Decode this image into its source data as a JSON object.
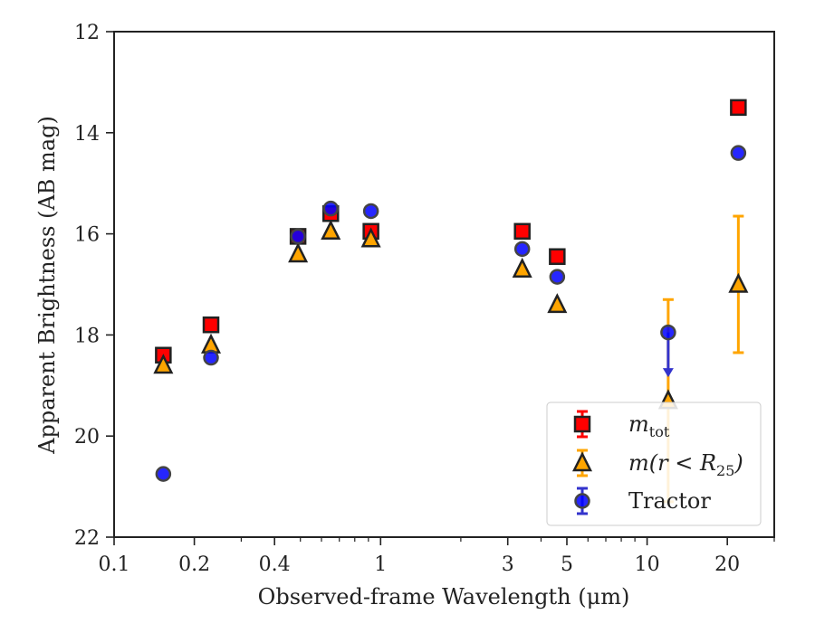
{
  "chart_data": {
    "type": "scatter",
    "xlabel": "Observed-frame Wavelength (μm)",
    "ylabel": "Apparent Brightness (AB mag)",
    "xscale": "log",
    "xlim": [
      0.1,
      30
    ],
    "ylim": [
      22,
      12
    ],
    "y_inverted": true,
    "x_ticks": [
      0.1,
      0.2,
      0.4,
      1,
      3,
      5,
      10,
      20
    ],
    "x_tick_labels": [
      "0.1",
      "0.2",
      "0.4",
      "1",
      "3",
      "5",
      "10",
      "20"
    ],
    "y_ticks": [
      12,
      14,
      16,
      18,
      20,
      22
    ],
    "y_tick_labels": [
      "12",
      "14",
      "16",
      "18",
      "20",
      "22"
    ],
    "grid": false,
    "legend_placement": "lower-right",
    "series": [
      {
        "name": "m_tot",
        "legend_main": "m",
        "legend_sub": "tot",
        "marker": "square",
        "color": "#ff0000",
        "edge_color": "#222222",
        "points": [
          {
            "x": 0.153,
            "y": 18.4
          },
          {
            "x": 0.231,
            "y": 17.8
          },
          {
            "x": 0.49,
            "y": 16.05
          },
          {
            "x": 0.65,
            "y": 15.6
          },
          {
            "x": 0.92,
            "y": 15.95
          },
          {
            "x": 3.4,
            "y": 15.95
          },
          {
            "x": 4.6,
            "y": 16.45
          },
          {
            "x": 22.0,
            "y": 13.5
          }
        ]
      },
      {
        "name": "m(r < R25)",
        "legend_main": "m(r < R",
        "legend_sub": "25",
        "legend_tail": ")",
        "marker": "triangle",
        "color": "#ffa500",
        "edge_color": "#222222",
        "points": [
          {
            "x": 0.153,
            "y": 18.6
          },
          {
            "x": 0.231,
            "y": 18.2
          },
          {
            "x": 0.49,
            "y": 16.4
          },
          {
            "x": 0.65,
            "y": 15.95
          },
          {
            "x": 0.92,
            "y": 16.1
          },
          {
            "x": 3.4,
            "y": 16.7
          },
          {
            "x": 4.6,
            "y": 17.4
          },
          {
            "x": 12.0,
            "y": 19.3,
            "yerr": [
              17.3,
              21.3
            ]
          },
          {
            "x": 22.0,
            "y": 17.0,
            "yerr": [
              15.65,
              18.35
            ]
          }
        ]
      },
      {
        "name": "Tractor",
        "marker": "circle",
        "color": "#0000ff",
        "edge_color": "#444444",
        "points": [
          {
            "x": 0.153,
            "y": 20.75
          },
          {
            "x": 0.231,
            "y": 18.45
          },
          {
            "x": 0.49,
            "y": 16.05
          },
          {
            "x": 0.65,
            "y": 15.5
          },
          {
            "x": 0.92,
            "y": 15.55
          },
          {
            "x": 3.4,
            "y": 16.3
          },
          {
            "x": 4.6,
            "y": 16.85
          },
          {
            "x": 12.0,
            "y": 17.95,
            "upper_limit_to": 18.8
          },
          {
            "x": 22.0,
            "y": 14.4
          }
        ]
      }
    ]
  },
  "legend": {
    "tractor_label": "Tractor"
  }
}
